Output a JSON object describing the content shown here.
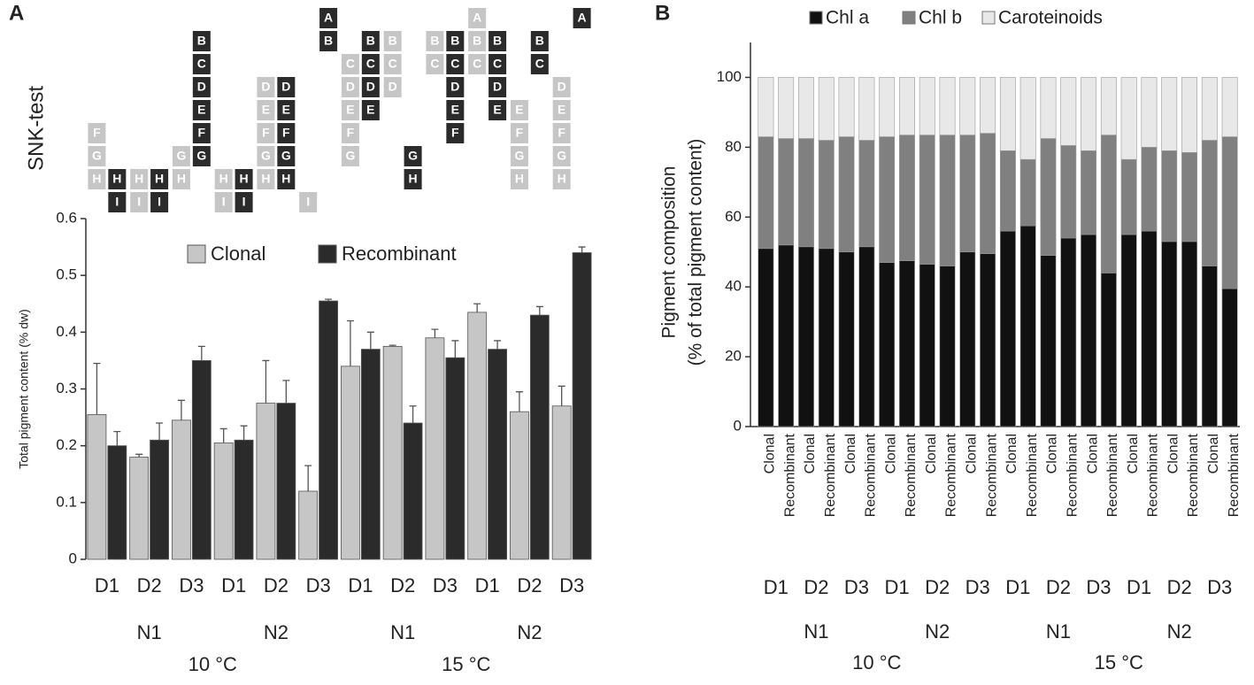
{
  "chart_data": [
    {
      "type": "grouped_bar",
      "panel": "A",
      "annotation": "SNK-test",
      "ylabel": "Total pigment content (% dw)",
      "categories": [
        "D1",
        "D2",
        "D3",
        "D1",
        "D2",
        "D3",
        "D1",
        "D2",
        "D3",
        "D1",
        "D2",
        "D3"
      ],
      "categories_level2": [
        "N1",
        "N2",
        "N1",
        "N2"
      ],
      "categories_level3": [
        "10 °C",
        "15 °C"
      ],
      "ylim": [
        0,
        0.6
      ],
      "yticks": [
        0,
        0.1,
        0.2,
        0.3,
        0.4,
        0.5,
        0.6
      ],
      "series": [
        {
          "name": "Clonal",
          "color": "#c6c6c6",
          "values": [
            0.255,
            0.18,
            0.245,
            0.205,
            0.275,
            0.12,
            0.34,
            0.375,
            0.39,
            0.435,
            0.26,
            0.27
          ],
          "errors": [
            0.09,
            0.005,
            0.035,
            0.025,
            0.075,
            0.045,
            0.08,
            0.002,
            0.015,
            0.015,
            0.035,
            0.035
          ],
          "letters": [
            [
              "F",
              "G",
              "H"
            ],
            [
              "H",
              "I"
            ],
            [
              "G",
              "H"
            ],
            [
              "H",
              "I"
            ],
            [
              "D",
              "E",
              "F",
              "G",
              "H"
            ],
            [
              "I"
            ],
            [
              "C",
              "D",
              "E",
              "F",
              "G"
            ],
            [
              "B",
              "C",
              "D"
            ],
            [
              "B",
              "C"
            ],
            [
              "A",
              "B",
              "C"
            ],
            [
              "E",
              "F",
              "G",
              "H"
            ],
            [
              "D",
              "E",
              "F",
              "G",
              "H"
            ]
          ]
        },
        {
          "name": "Recombinant",
          "color": "#2b2b2b",
          "values": [
            0.2,
            0.21,
            0.35,
            0.21,
            0.275,
            0.455,
            0.37,
            0.24,
            0.355,
            0.37,
            0.43,
            0.54
          ],
          "errors": [
            0.025,
            0.03,
            0.025,
            0.025,
            0.04,
            0.003,
            0.03,
            0.03,
            0.03,
            0.015,
            0.015,
            0.01
          ],
          "letters": [
            [
              "H",
              "I"
            ],
            [
              "H",
              "I"
            ],
            [
              "B",
              "C",
              "D",
              "E",
              "F",
              "G"
            ],
            [
              "H",
              "I"
            ],
            [
              "D",
              "E",
              "F",
              "G",
              "H"
            ],
            [
              "A",
              "B"
            ],
            [
              "B",
              "C",
              "D",
              "E"
            ],
            [
              "G",
              "H"
            ],
            [
              "B",
              "C",
              "D",
              "E",
              "F"
            ],
            [
              "B",
              "C",
              "D",
              "E"
            ],
            [
              "B",
              "C"
            ],
            [
              "A"
            ]
          ]
        }
      ]
    },
    {
      "type": "stacked_bar",
      "panel": "B",
      "ylabel": [
        "Pigment composition",
        "(% of total pigment content)"
      ],
      "categories": [
        "Clonal",
        "Recombinant",
        "Clonal",
        "Recombinant",
        "Clonal",
        "Recombinant",
        "Clonal",
        "Recombinant",
        "Clonal",
        "Recombinant",
        "Clonal",
        "Recombinant",
        "Clonal",
        "Recombinant",
        "Clonal",
        "Recombinant",
        "Clonal",
        "Recombinant",
        "Clonal",
        "Recombinant",
        "Clonal",
        "Recombinant",
        "Clonal",
        "Recombinant"
      ],
      "categories_level2": [
        "D1",
        "D2",
        "D3",
        "D1",
        "D2",
        "D3",
        "D1",
        "D2",
        "D3",
        "D1",
        "D2",
        "D3"
      ],
      "categories_level3": [
        "N1",
        "N2",
        "N1",
        "N2"
      ],
      "categories_level4": [
        "10 °C",
        "15 °C"
      ],
      "ylim": [
        0,
        110
      ],
      "yticks": [
        0,
        20,
        40,
        60,
        80,
        100
      ],
      "series": [
        {
          "name": "Chl a",
          "color": "#111111",
          "values": [
            51,
            52,
            51.5,
            51,
            50,
            51.5,
            47,
            47.5,
            46.5,
            46,
            50,
            49.5,
            56,
            57.5,
            49,
            54,
            55,
            44,
            55,
            56,
            53,
            53,
            46,
            39.5
          ]
        },
        {
          "name": "Chl b",
          "color": "#808080",
          "values": [
            32,
            30.5,
            31,
            31,
            33,
            30.5,
            36,
            36,
            37,
            37.5,
            33.5,
            34.5,
            23,
            19,
            33.5,
            26.5,
            24,
            39.5,
            21.5,
            24,
            26,
            25.5,
            36,
            43.5
          ]
        },
        {
          "name": "Caroteinoids",
          "color": "#e8e8e8",
          "values": [
            17,
            17.5,
            17.5,
            18,
            17,
            18,
            17,
            16.5,
            16.5,
            16.5,
            16.5,
            16,
            21,
            23.5,
            17.5,
            19.5,
            21,
            16.5,
            23.5,
            20,
            21,
            21.5,
            18,
            17
          ]
        }
      ]
    }
  ]
}
